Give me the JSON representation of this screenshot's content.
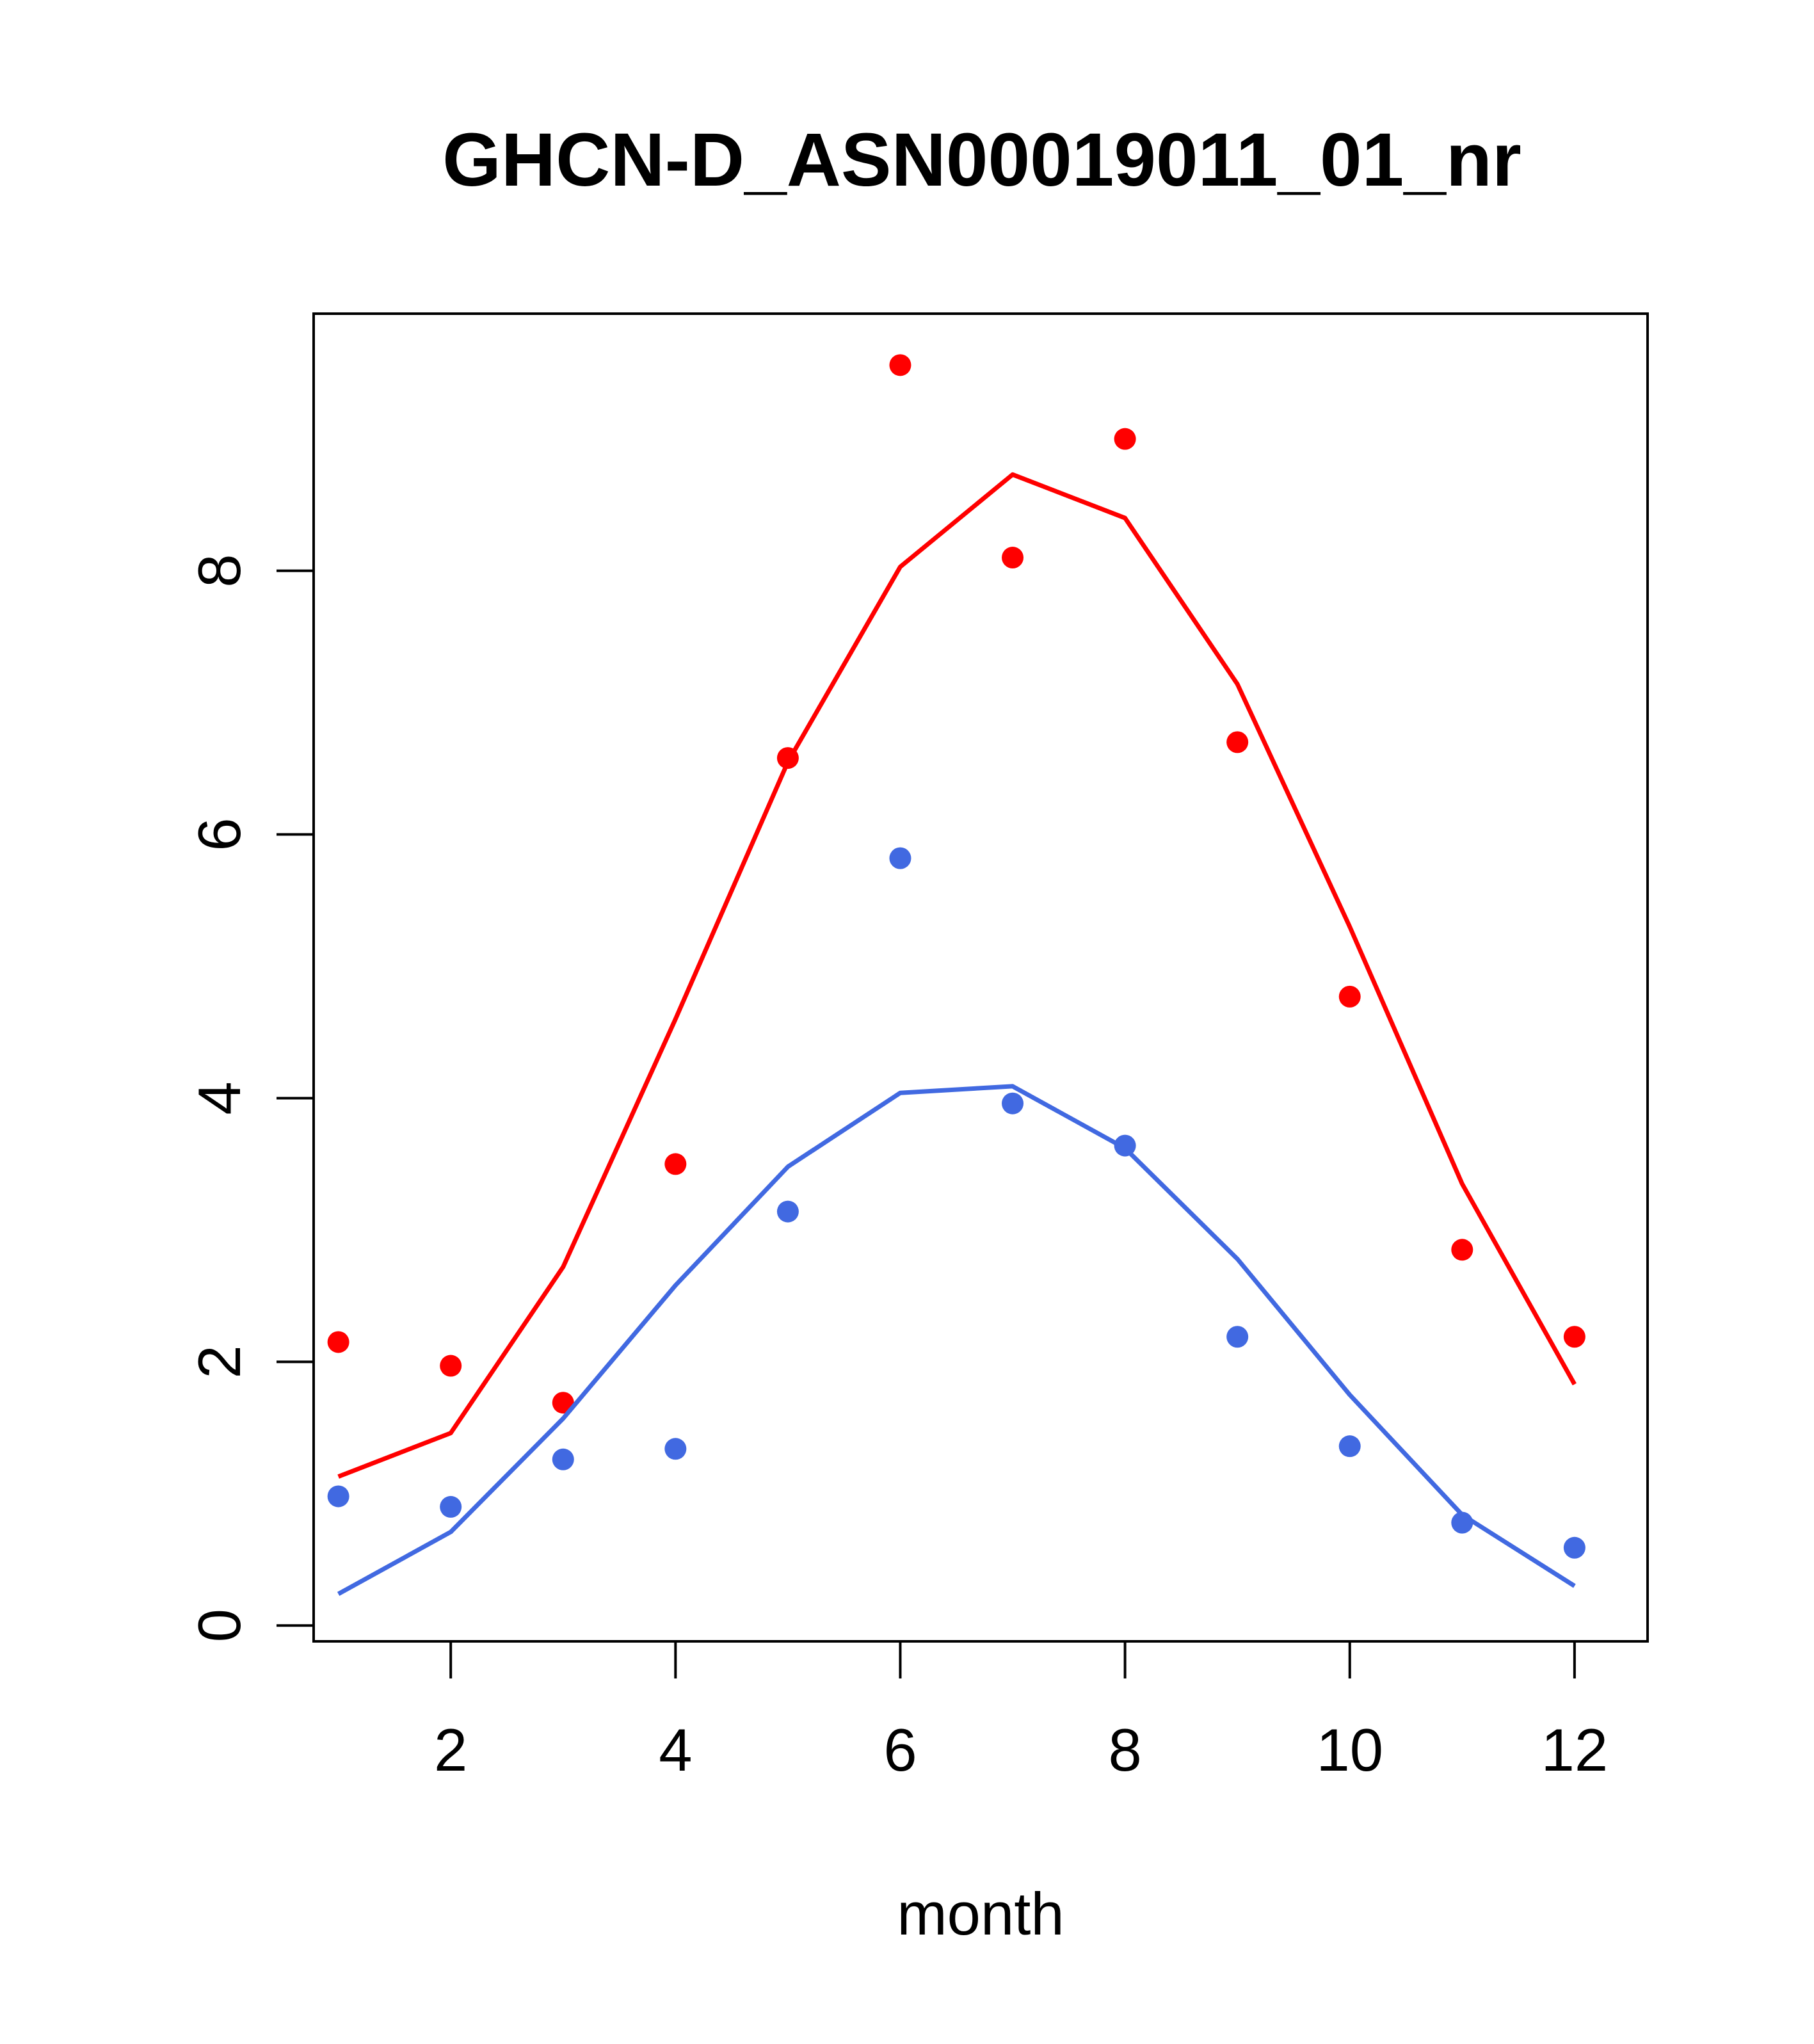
{
  "chart_data": {
    "type": "line",
    "title": "GHCN-D_ASN00019011_01_nr",
    "xlabel": "month",
    "ylabel": "",
    "xlim": [
      0.78,
      12.65
    ],
    "ylim": [
      -0.12,
      9.95
    ],
    "x_ticks": [
      2,
      4,
      6,
      8,
      10,
      12
    ],
    "x_tick_labels": [
      "2",
      "4",
      "6",
      "8",
      "10",
      "12"
    ],
    "y_ticks": [
      0,
      2,
      4,
      6,
      8
    ],
    "y_tick_labels": [
      "0",
      "2",
      "4",
      "6",
      "8"
    ],
    "grid": false,
    "series": [
      {
        "color": "#ff0000",
        "points": [
          {
            "x": 1,
            "y": 2.15
          },
          {
            "x": 2,
            "y": 1.97
          },
          {
            "x": 3,
            "y": 1.69
          },
          {
            "x": 4,
            "y": 3.5
          },
          {
            "x": 5,
            "y": 6.58
          },
          {
            "x": 6,
            "y": 9.56
          },
          {
            "x": 7,
            "y": 8.1
          },
          {
            "x": 8,
            "y": 9.0
          },
          {
            "x": 9,
            "y": 6.7
          },
          {
            "x": 10,
            "y": 4.77
          },
          {
            "x": 11,
            "y": 2.85
          },
          {
            "x": 12,
            "y": 2.19
          }
        ],
        "fit": [
          {
            "x": 1,
            "y": 1.13
          },
          {
            "x": 2,
            "y": 1.46
          },
          {
            "x": 3,
            "y": 2.72
          },
          {
            "x": 4,
            "y": 4.6
          },
          {
            "x": 5,
            "y": 6.55
          },
          {
            "x": 6,
            "y": 8.03
          },
          {
            "x": 7,
            "y": 8.73
          },
          {
            "x": 8,
            "y": 8.4
          },
          {
            "x": 9,
            "y": 7.14
          },
          {
            "x": 10,
            "y": 5.3
          },
          {
            "x": 11,
            "y": 3.35
          },
          {
            "x": 12,
            "y": 1.83
          }
        ]
      },
      {
        "color": "#4169e1",
        "points": [
          {
            "x": 1,
            "y": 0.98
          },
          {
            "x": 2,
            "y": 0.9
          },
          {
            "x": 3,
            "y": 1.26
          },
          {
            "x": 4,
            "y": 1.34
          },
          {
            "x": 5,
            "y": 3.14
          },
          {
            "x": 6,
            "y": 5.82
          },
          {
            "x": 7,
            "y": 3.96
          },
          {
            "x": 8,
            "y": 3.64
          },
          {
            "x": 9,
            "y": 2.19
          },
          {
            "x": 10,
            "y": 1.36
          },
          {
            "x": 11,
            "y": 0.78
          },
          {
            "x": 12,
            "y": 0.59
          }
        ],
        "fit": [
          {
            "x": 1,
            "y": 0.24
          },
          {
            "x": 2,
            "y": 0.71
          },
          {
            "x": 3,
            "y": 1.57
          },
          {
            "x": 4,
            "y": 2.58
          },
          {
            "x": 5,
            "y": 3.48
          },
          {
            "x": 6,
            "y": 4.04
          },
          {
            "x": 7,
            "y": 4.09
          },
          {
            "x": 8,
            "y": 3.62
          },
          {
            "x": 9,
            "y": 2.78
          },
          {
            "x": 10,
            "y": 1.75
          },
          {
            "x": 11,
            "y": 0.84
          },
          {
            "x": 12,
            "y": 0.3
          }
        ]
      }
    ]
  }
}
